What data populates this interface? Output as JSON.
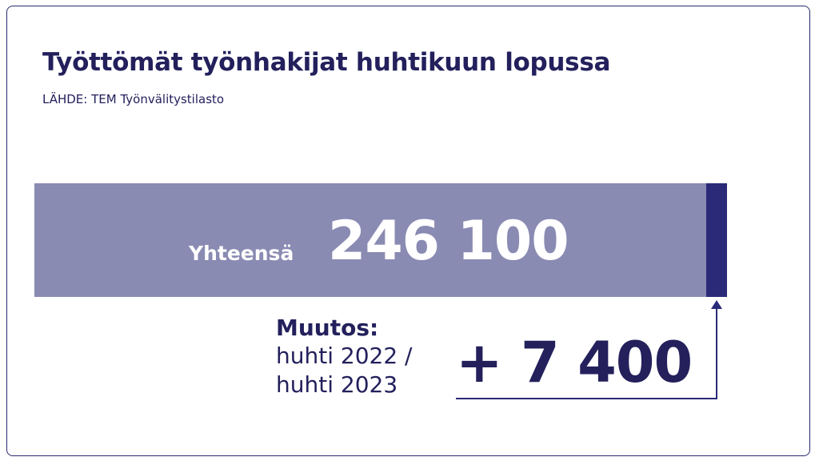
{
  "title": "Työttömät työnhakijat huhtikuun lopussa",
  "source": "LÄHDE: TEM Työnvälitystilasto",
  "total": {
    "label": "Yhteensä",
    "value": "246 100"
  },
  "change": {
    "title": "Muutos:",
    "period_line1": "huhti 2022 /",
    "period_line2": "huhti 2023",
    "value": "+ 7 400"
  },
  "colors": {
    "bar": "#8a8bb3",
    "change_segment": "#2a2a78",
    "text": "#23205c"
  },
  "chart_data": {
    "type": "bar",
    "orientation": "horizontal-stacked",
    "title": "Työttömät työnhakijat huhtikuun lopussa",
    "categories": [
      "Yhteensä"
    ],
    "values": [
      246100
    ],
    "change": 7400
  }
}
